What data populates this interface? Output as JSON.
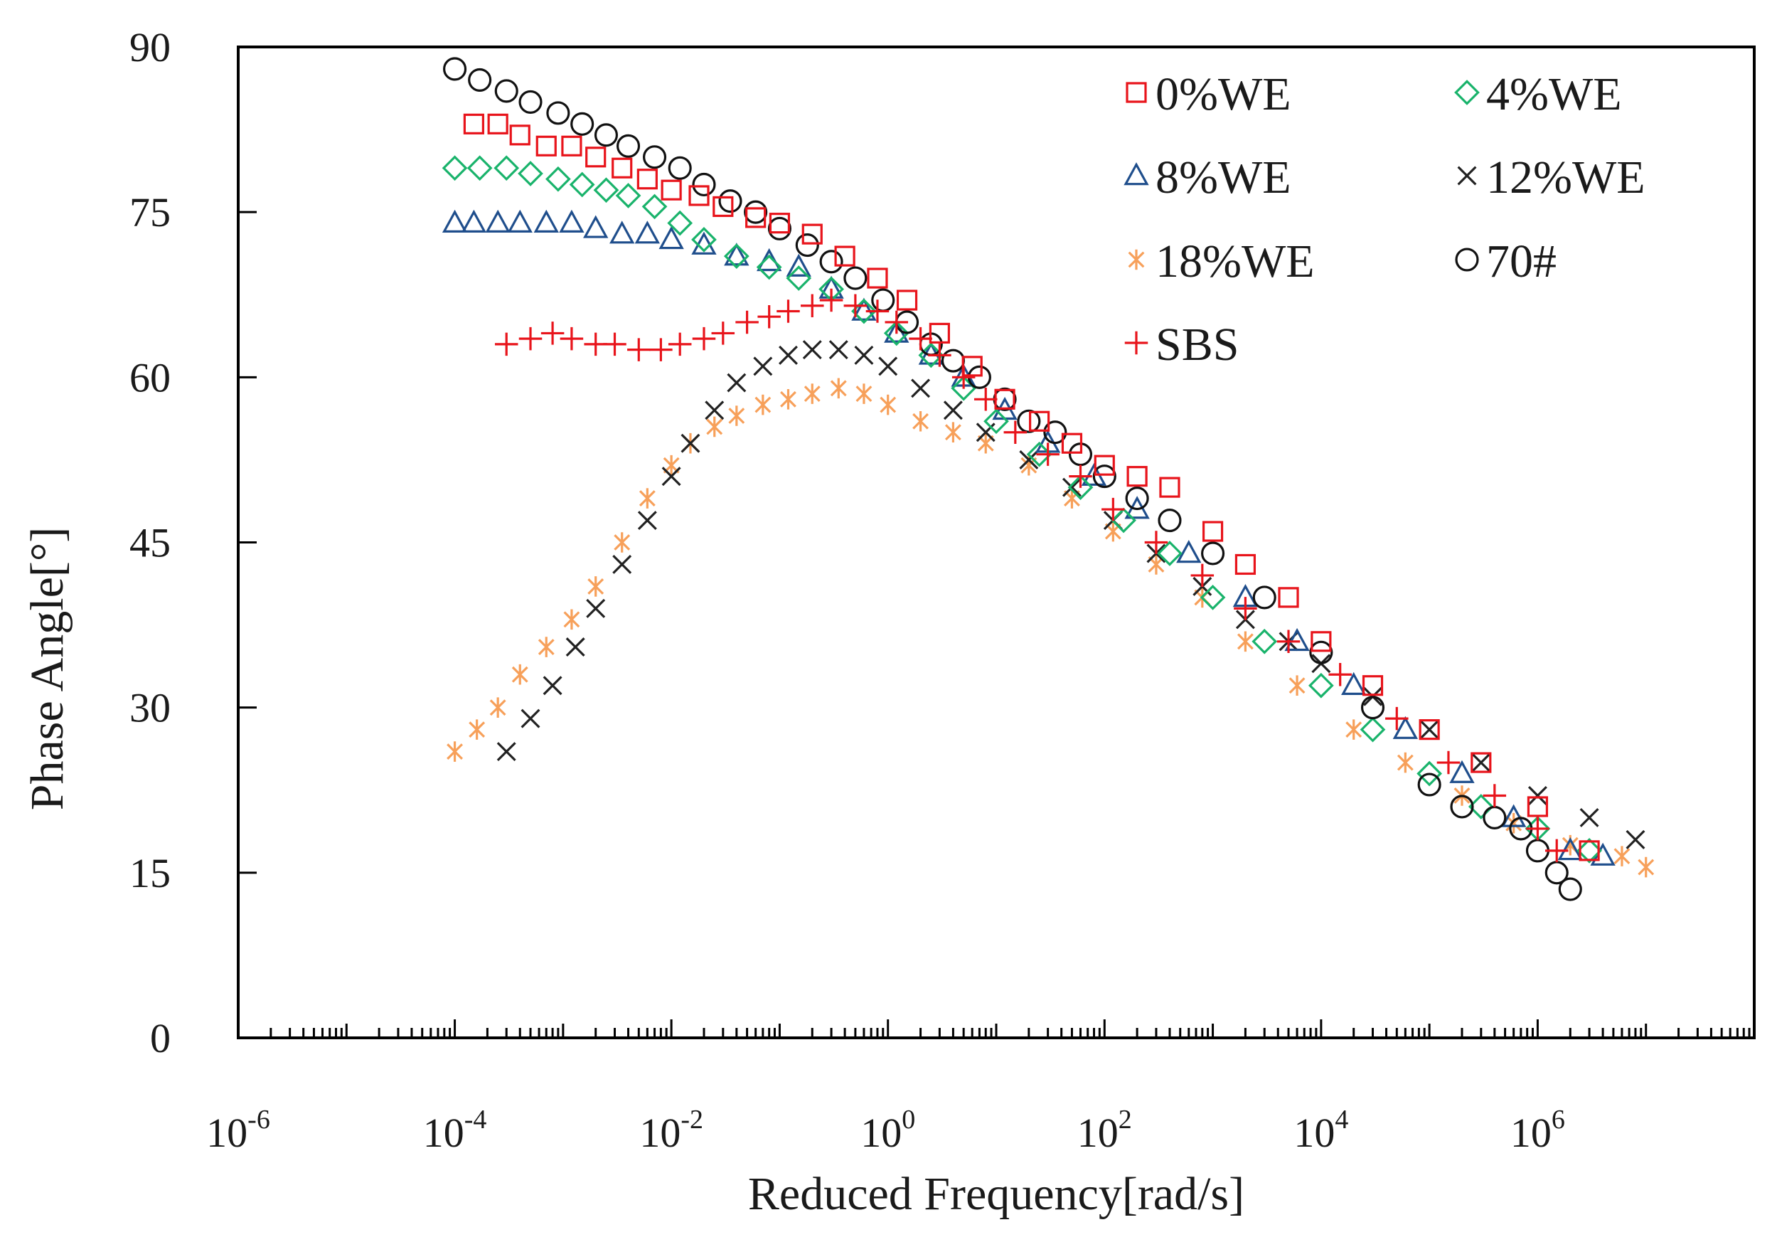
{
  "chart_data": {
    "type": "scatter",
    "title": "",
    "xlabel": "Reduced Frequency[rad/s]",
    "ylabel": "Phase Angle[°]",
    "x_scale": "log",
    "xlim": [
      1e-06,
      100000000
    ],
    "ylim": [
      0,
      90
    ],
    "x_ticks": [
      {
        "base": "10",
        "exp": "-6",
        "value": 1e-06
      },
      {
        "base": "10",
        "exp": "-4",
        "value": 0.0001
      },
      {
        "base": "10",
        "exp": "-2",
        "value": 0.01
      },
      {
        "base": "10",
        "exp": "0",
        "value": 1
      },
      {
        "base": "10",
        "exp": "2",
        "value": 100
      },
      {
        "base": "10",
        "exp": "4",
        "value": 10000
      },
      {
        "base": "10",
        "exp": "6",
        "value": 1000000
      }
    ],
    "y_ticks": [
      "0",
      "15",
      "30",
      "45",
      "60",
      "75",
      "90"
    ],
    "grid": false,
    "legend_position": "top-right",
    "series": [
      {
        "name": "0%WE",
        "marker": "square",
        "color": "#e8141b",
        "x": [
          0.00015,
          0.00025,
          0.0004,
          0.0007,
          0.0012,
          0.002,
          0.0035,
          0.006,
          0.01,
          0.018,
          0.03,
          0.06,
          0.1,
          0.2,
          0.4,
          0.8,
          1.5,
          3,
          6,
          12,
          25,
          50,
          100,
          200,
          400,
          1000,
          2000,
          5000,
          10000,
          30000,
          100000,
          300000,
          1000000,
          3000000
        ],
        "y": [
          83,
          83,
          82,
          81,
          81,
          80,
          79,
          78,
          77,
          76.5,
          75.5,
          74.5,
          74,
          73,
          71,
          69,
          67,
          64,
          61,
          58,
          56,
          54,
          52,
          51,
          50,
          46,
          43,
          40,
          36,
          32,
          28,
          25,
          21,
          17
        ]
      },
      {
        "name": "4%WE",
        "marker": "diamond",
        "color": "#19b36b",
        "x": [
          0.0001,
          0.00017,
          0.0003,
          0.0005,
          0.0009,
          0.0015,
          0.0025,
          0.004,
          0.007,
          0.012,
          0.02,
          0.04,
          0.08,
          0.15,
          0.3,
          0.6,
          1.2,
          2.5,
          5,
          10,
          25,
          60,
          150,
          400,
          1000,
          3000,
          10000,
          30000,
          100000,
          300000,
          1000000,
          3000000
        ],
        "y": [
          79,
          79,
          79,
          78.5,
          78,
          77.5,
          77,
          76.5,
          75.5,
          74,
          72.5,
          71,
          70,
          69,
          68,
          66,
          64,
          62,
          59,
          56,
          53,
          50,
          47,
          44,
          40,
          36,
          32,
          28,
          24,
          21,
          19,
          17
        ]
      },
      {
        "name": "8%WE",
        "marker": "triangle",
        "color": "#1f4e8c",
        "x": [
          0.0001,
          0.00015,
          0.00025,
          0.0004,
          0.0007,
          0.0012,
          0.002,
          0.0035,
          0.006,
          0.01,
          0.02,
          0.04,
          0.08,
          0.15,
          0.3,
          0.6,
          1.2,
          2.5,
          5,
          12,
          30,
          80,
          200,
          600,
          2000,
          6000,
          20000,
          60000,
          200000,
          600000,
          2000000,
          4000000
        ],
        "y": [
          74,
          74,
          74,
          74,
          74,
          74,
          73.5,
          73,
          73,
          72.5,
          72,
          71,
          70.5,
          70,
          68,
          66,
          64,
          62,
          60,
          57,
          54,
          51,
          48,
          44,
          40,
          36,
          32,
          28,
          24,
          20,
          17,
          16.5
        ]
      },
      {
        "name": "12%WE",
        "marker": "cross",
        "color": "#222222",
        "x": [
          0.0003,
          0.0005,
          0.0008,
          0.0013,
          0.002,
          0.0035,
          0.006,
          0.01,
          0.015,
          0.025,
          0.04,
          0.07,
          0.12,
          0.2,
          0.35,
          0.6,
          1,
          2,
          4,
          8,
          20,
          50,
          120,
          300,
          800,
          2000,
          5000,
          10000,
          30000,
          100000,
          300000,
          1000000,
          3000000,
          8000000
        ],
        "y": [
          26,
          29,
          32,
          35.5,
          39,
          43,
          47,
          51,
          54,
          57,
          59.5,
          61,
          62,
          62.5,
          62.5,
          62,
          61,
          59,
          57,
          55,
          52.5,
          50,
          47,
          44,
          41,
          38,
          36,
          34,
          31,
          28,
          25,
          22,
          20,
          18
        ]
      },
      {
        "name": "18%WE",
        "marker": "asterisk",
        "color": "#f7a05a",
        "x": [
          0.0001,
          0.00016,
          0.00025,
          0.0004,
          0.0007,
          0.0012,
          0.002,
          0.0035,
          0.006,
          0.01,
          0.015,
          0.025,
          0.04,
          0.07,
          0.12,
          0.2,
          0.35,
          0.6,
          1,
          2,
          4,
          8,
          20,
          50,
          120,
          300,
          800,
          2000,
          6000,
          20000,
          60000,
          200000,
          600000,
          2000000,
          6000000,
          10000000
        ],
        "y": [
          26,
          28,
          30,
          33,
          35.5,
          38,
          41,
          45,
          49,
          52,
          54,
          55.5,
          56.5,
          57.5,
          58,
          58.5,
          59,
          58.5,
          57.5,
          56,
          55,
          54,
          52,
          49,
          46,
          43,
          40,
          36,
          32,
          28,
          25,
          22,
          19.5,
          17.5,
          16.5,
          15.5
        ]
      },
      {
        "name": "70#",
        "marker": "circle",
        "color": "#111111",
        "x": [
          0.0001,
          0.00017,
          0.0003,
          0.0005,
          0.0009,
          0.0015,
          0.0025,
          0.004,
          0.007,
          0.012,
          0.02,
          0.035,
          0.06,
          0.1,
          0.18,
          0.3,
          0.5,
          0.9,
          1.5,
          2.5,
          4,
          7,
          12,
          20,
          35,
          60,
          100,
          200,
          400,
          1000,
          3000,
          10000,
          30000,
          100000,
          200000,
          400000,
          700000,
          1000000,
          1500000,
          2000000
        ],
        "y": [
          88,
          87,
          86,
          85,
          84,
          83,
          82,
          81,
          80,
          79,
          77.5,
          76,
          75,
          73.5,
          72,
          70.5,
          69,
          67,
          65,
          63,
          61.5,
          60,
          58,
          56,
          55,
          53,
          51,
          49,
          47,
          44,
          40,
          35,
          30,
          23,
          21,
          20,
          19,
          17,
          15,
          13.5
        ]
      },
      {
        "name": "SBS",
        "marker": "plus",
        "color": "#e8141b",
        "x": [
          0.0003,
          0.0005,
          0.0008,
          0.0012,
          0.002,
          0.003,
          0.005,
          0.008,
          0.012,
          0.02,
          0.03,
          0.05,
          0.08,
          0.12,
          0.2,
          0.3,
          0.5,
          0.8,
          1.2,
          2,
          3,
          5,
          8,
          15,
          30,
          60,
          120,
          300,
          800,
          2000,
          5000,
          15000,
          50000,
          150000,
          400000,
          1000000,
          1500000
        ],
        "y": [
          63,
          63.5,
          64,
          63.5,
          63,
          63,
          62.5,
          62.5,
          63,
          63.5,
          64,
          65,
          65.5,
          66,
          66.5,
          67,
          66.5,
          66,
          65,
          63.5,
          62,
          60,
          58,
          55,
          53,
          51,
          48,
          45,
          42,
          39,
          36,
          33,
          29,
          25,
          22,
          19,
          17
        ]
      }
    ]
  }
}
